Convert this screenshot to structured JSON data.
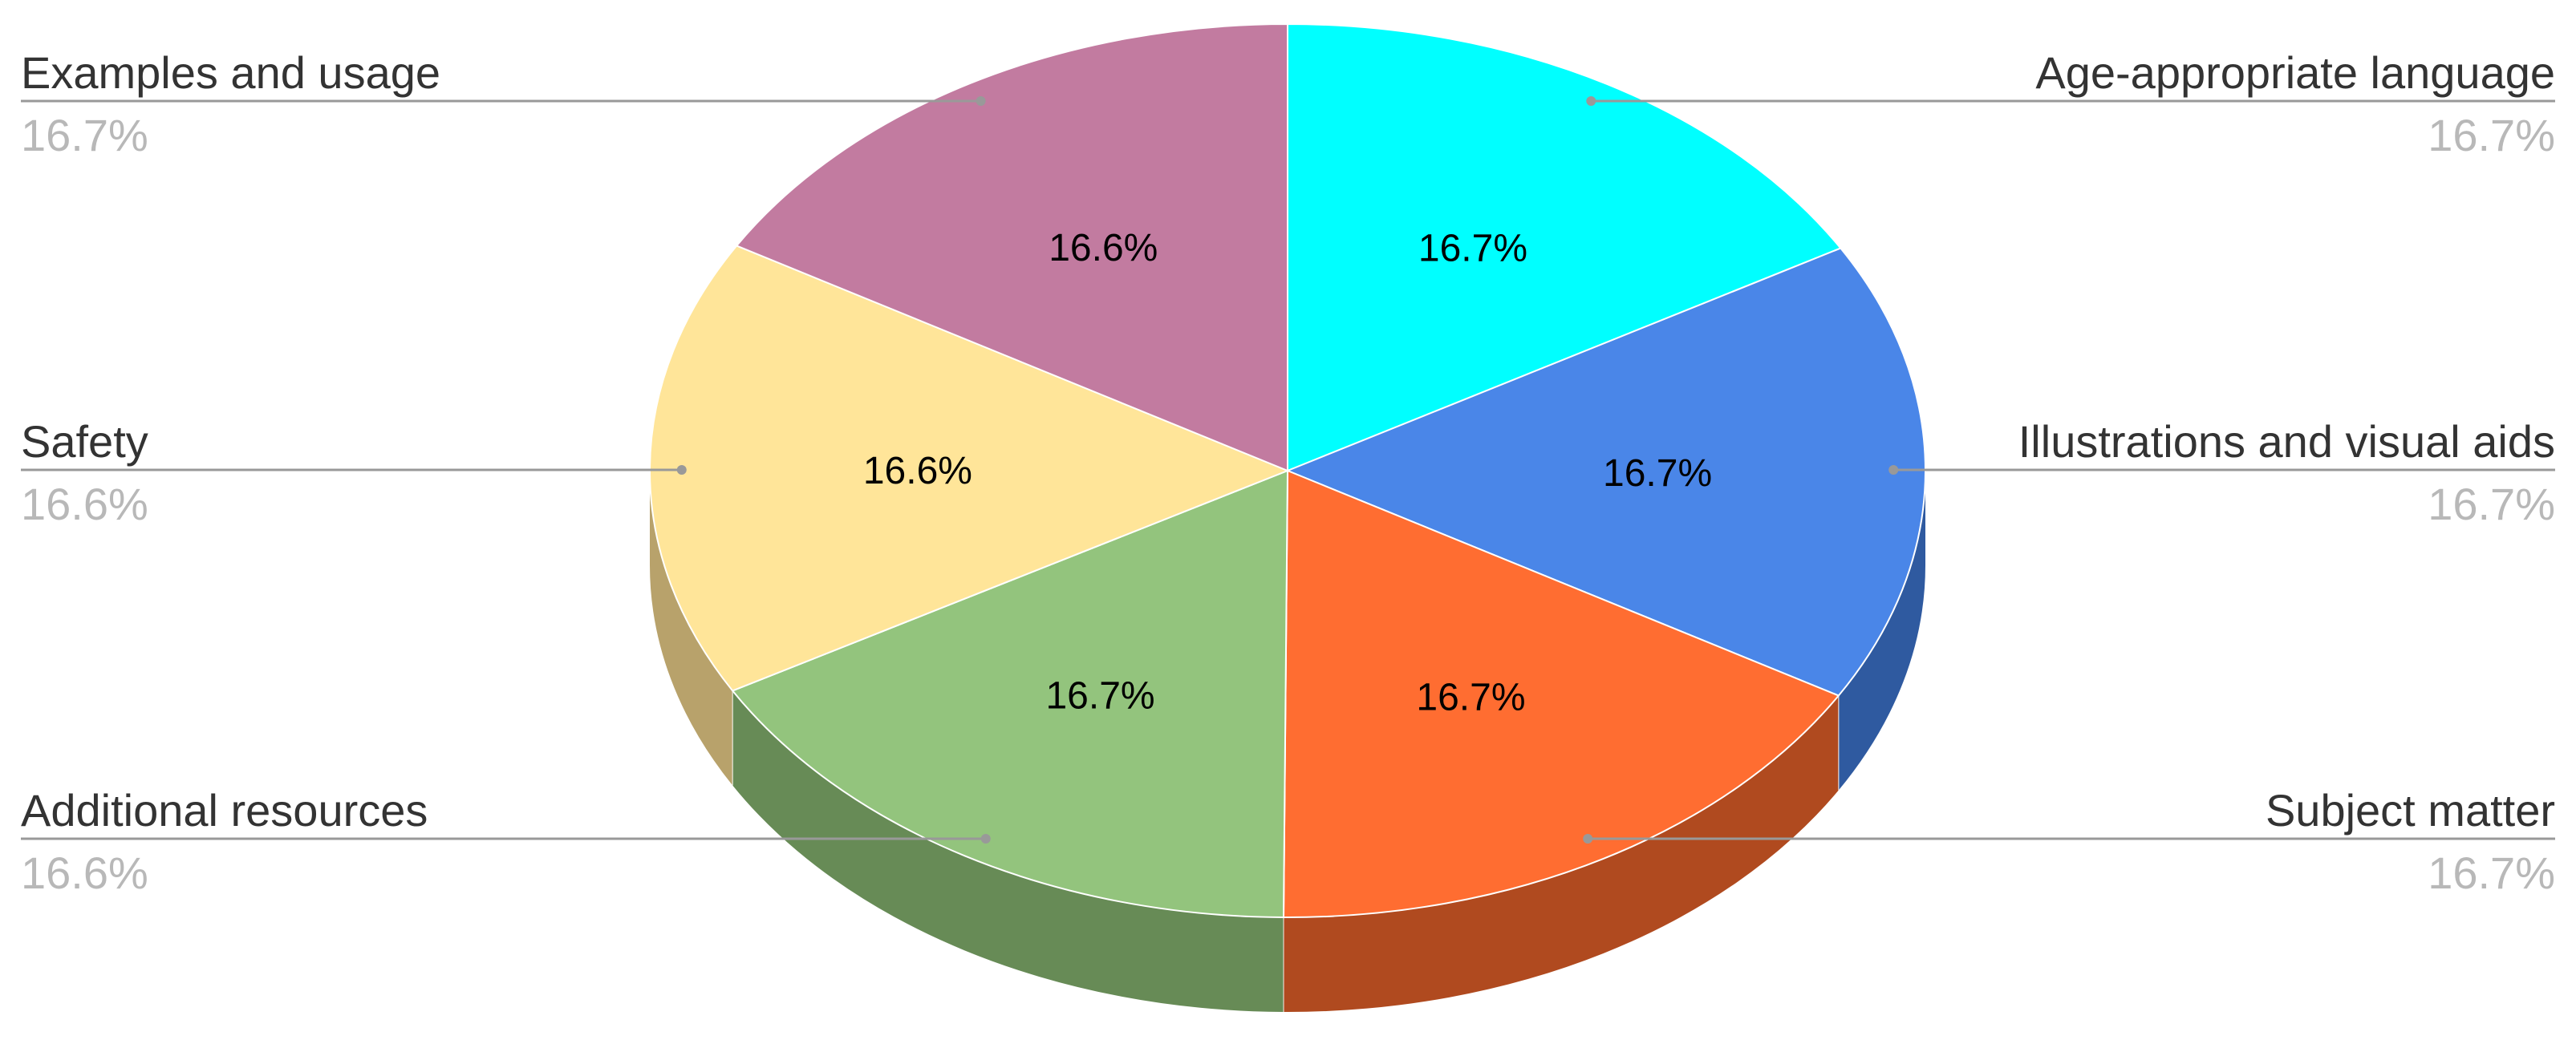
{
  "chart_data": {
    "type": "pie",
    "style": "3d",
    "title": "",
    "legend": "none",
    "slices": [
      {
        "label": "Age-appropriate language",
        "value": 16.7,
        "display": "16.7%",
        "color": "#00FFFF",
        "side_color": "#00B8B8",
        "side": "right"
      },
      {
        "label": "Illustrations and visual aids",
        "value": 16.7,
        "display": "16.7%",
        "color": "#4A86E8",
        "side_color": "#2F5AA0",
        "side": "right"
      },
      {
        "label": "Subject matter",
        "value": 16.7,
        "display": "16.7%",
        "color": "#FF6D31",
        "side_color": "#B04A1F",
        "side": "right"
      },
      {
        "label": "Examples and usage",
        "value": 16.7,
        "display": "16.7%",
        "color": "#93C47D",
        "side_color": "#678B56",
        "side": "left"
      },
      {
        "label": "Safety",
        "value": 16.6,
        "display": "16.6%",
        "color": "#FFE599",
        "side_color": "#B8A26B",
        "side": "left"
      },
      {
        "label": "Additional resources",
        "value": 16.6,
        "display": "16.6%",
        "color": "#C27BA0",
        "side_color": "#8A5673",
        "side": "left"
      }
    ]
  }
}
